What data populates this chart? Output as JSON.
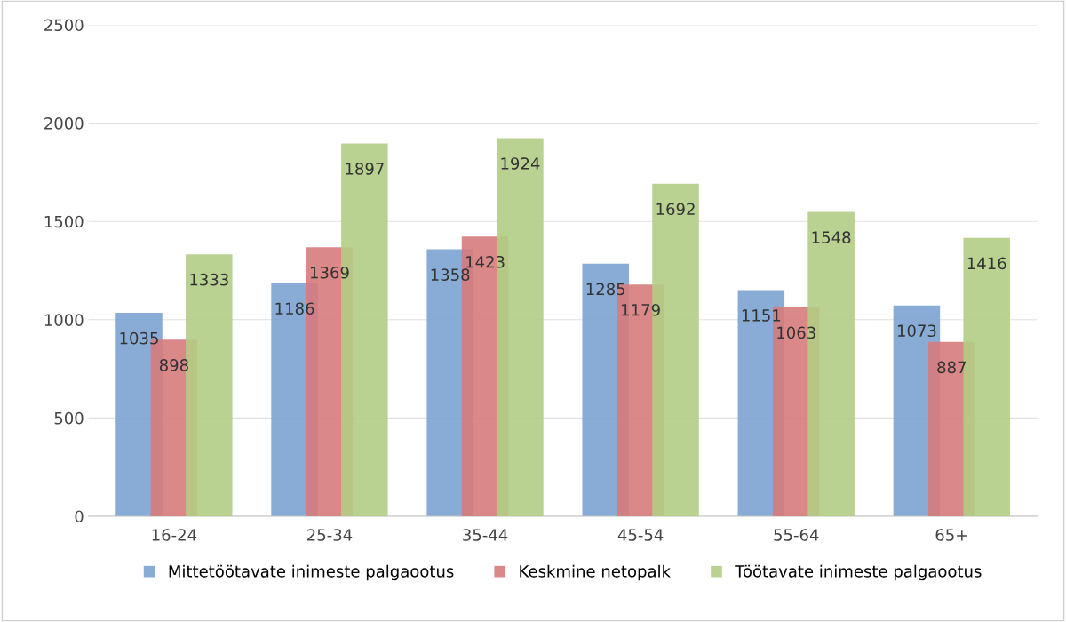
{
  "chart_data": {
    "type": "bar",
    "categories": [
      "16-24",
      "25-34",
      "35-44",
      "45-54",
      "55-64",
      "65+"
    ],
    "series": [
      {
        "name": "Mittetöötavate inimeste palgaootus",
        "color": "#7ba3d1",
        "values": [
          1035,
          1186,
          1358,
          1285,
          1151,
          1073
        ]
      },
      {
        "name": "Keskmine netopalk",
        "color": "#d77b7b",
        "values": [
          898,
          1369,
          1423,
          1179,
          1063,
          887
        ]
      },
      {
        "name": "Töötavate inimeste palgaootus",
        "color": "#b3cd85",
        "values": [
          1333,
          1897,
          1924,
          1692,
          1548,
          1416
        ]
      }
    ],
    "ylim": [
      0,
      2500
    ],
    "yticks": [
      0,
      500,
      1000,
      1500,
      2000,
      2500
    ],
    "grid": "y",
    "legend": "bottom",
    "data_labels": true
  }
}
